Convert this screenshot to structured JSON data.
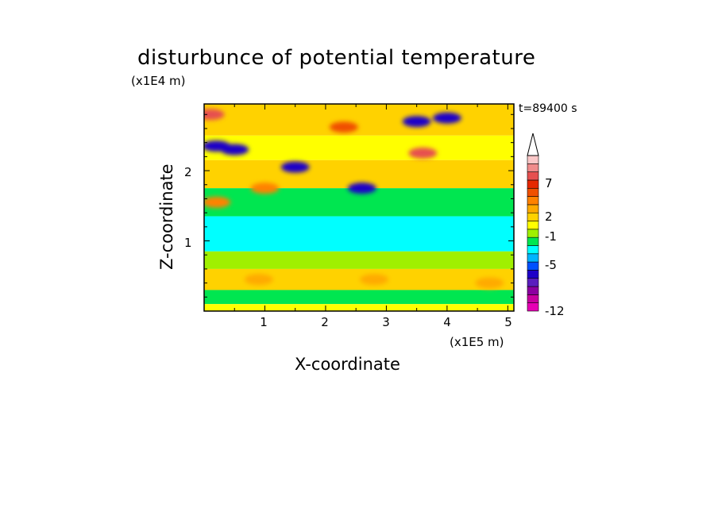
{
  "chart_data": {
    "type": "heatmap",
    "title": "disturbunce of potential temperature",
    "xlabel": "X-coordinate",
    "ylabel": "Z-coordinate",
    "x_unit": "(x1E5 m)",
    "z_unit": "(x1E4 m)",
    "annotation": "t=89400 s",
    "xlim": [
      0,
      5.1
    ],
    "ylim": [
      0,
      2.95
    ],
    "x_ticks": [
      "1",
      "2",
      "3",
      "4",
      "5"
    ],
    "y_ticks": [
      "1",
      "2"
    ],
    "x_tick_values": [
      1,
      2,
      3,
      4,
      5
    ],
    "y_tick_values": [
      1,
      2
    ],
    "colorbar": {
      "levels": [
        "-12",
        "-5",
        "-1",
        "2",
        "7"
      ],
      "level_values": [
        -12,
        -5,
        -1,
        2,
        7
      ],
      "colors": [
        "#e600b4",
        "#c800a0",
        "#8c00a0",
        "#5a1ebe",
        "#1e00c8",
        "#0050ff",
        "#00b4ff",
        "#00ffff",
        "#00e650",
        "#a0f000",
        "#ffff00",
        "#ffd200",
        "#ffaa00",
        "#ff8200",
        "#f05000",
        "#e62800",
        "#e65050",
        "#f08c8c",
        "#fac8c8"
      ],
      "extend_top": true
    },
    "bands": [
      {
        "z": [
          2.5,
          2.95
        ],
        "value": 2
      },
      {
        "z": [
          2.15,
          2.5
        ],
        "value": 1
      },
      {
        "z": [
          1.75,
          2.15
        ],
        "value": 2
      },
      {
        "z": [
          1.35,
          1.75
        ],
        "value": 0
      },
      {
        "z": [
          0.85,
          1.35
        ],
        "value": -1
      },
      {
        "z": [
          0.6,
          0.85
        ],
        "value": 0.5
      },
      {
        "z": [
          0.3,
          0.6
        ],
        "value": 2
      },
      {
        "z": [
          0.1,
          0.3
        ],
        "value": -0.5
      },
      {
        "z": [
          0,
          0.1
        ],
        "value": 1
      }
    ],
    "features": [
      {
        "x": 0.2,
        "z": 2.35,
        "value": -5
      },
      {
        "x": 0.5,
        "z": 2.3,
        "value": -5
      },
      {
        "x": 1.5,
        "z": 2.05,
        "value": -5
      },
      {
        "x": 2.6,
        "z": 1.75,
        "value": -5
      },
      {
        "x": 3.5,
        "z": 2.7,
        "value": -5
      },
      {
        "x": 4.0,
        "z": 2.75,
        "value": -5
      },
      {
        "x": 2.3,
        "z": 2.62,
        "value": 5
      },
      {
        "x": 3.6,
        "z": 2.25,
        "value": 7
      },
      {
        "x": 0.1,
        "z": 2.8,
        "value": 7
      },
      {
        "x": 1.0,
        "z": 1.75,
        "value": 4
      },
      {
        "x": 0.2,
        "z": 1.55,
        "value": 4
      },
      {
        "x": 0.9,
        "z": 0.45,
        "value": 3
      },
      {
        "x": 2.8,
        "z": 0.45,
        "value": 3
      },
      {
        "x": 4.7,
        "z": 0.4,
        "value": 3
      }
    ]
  }
}
